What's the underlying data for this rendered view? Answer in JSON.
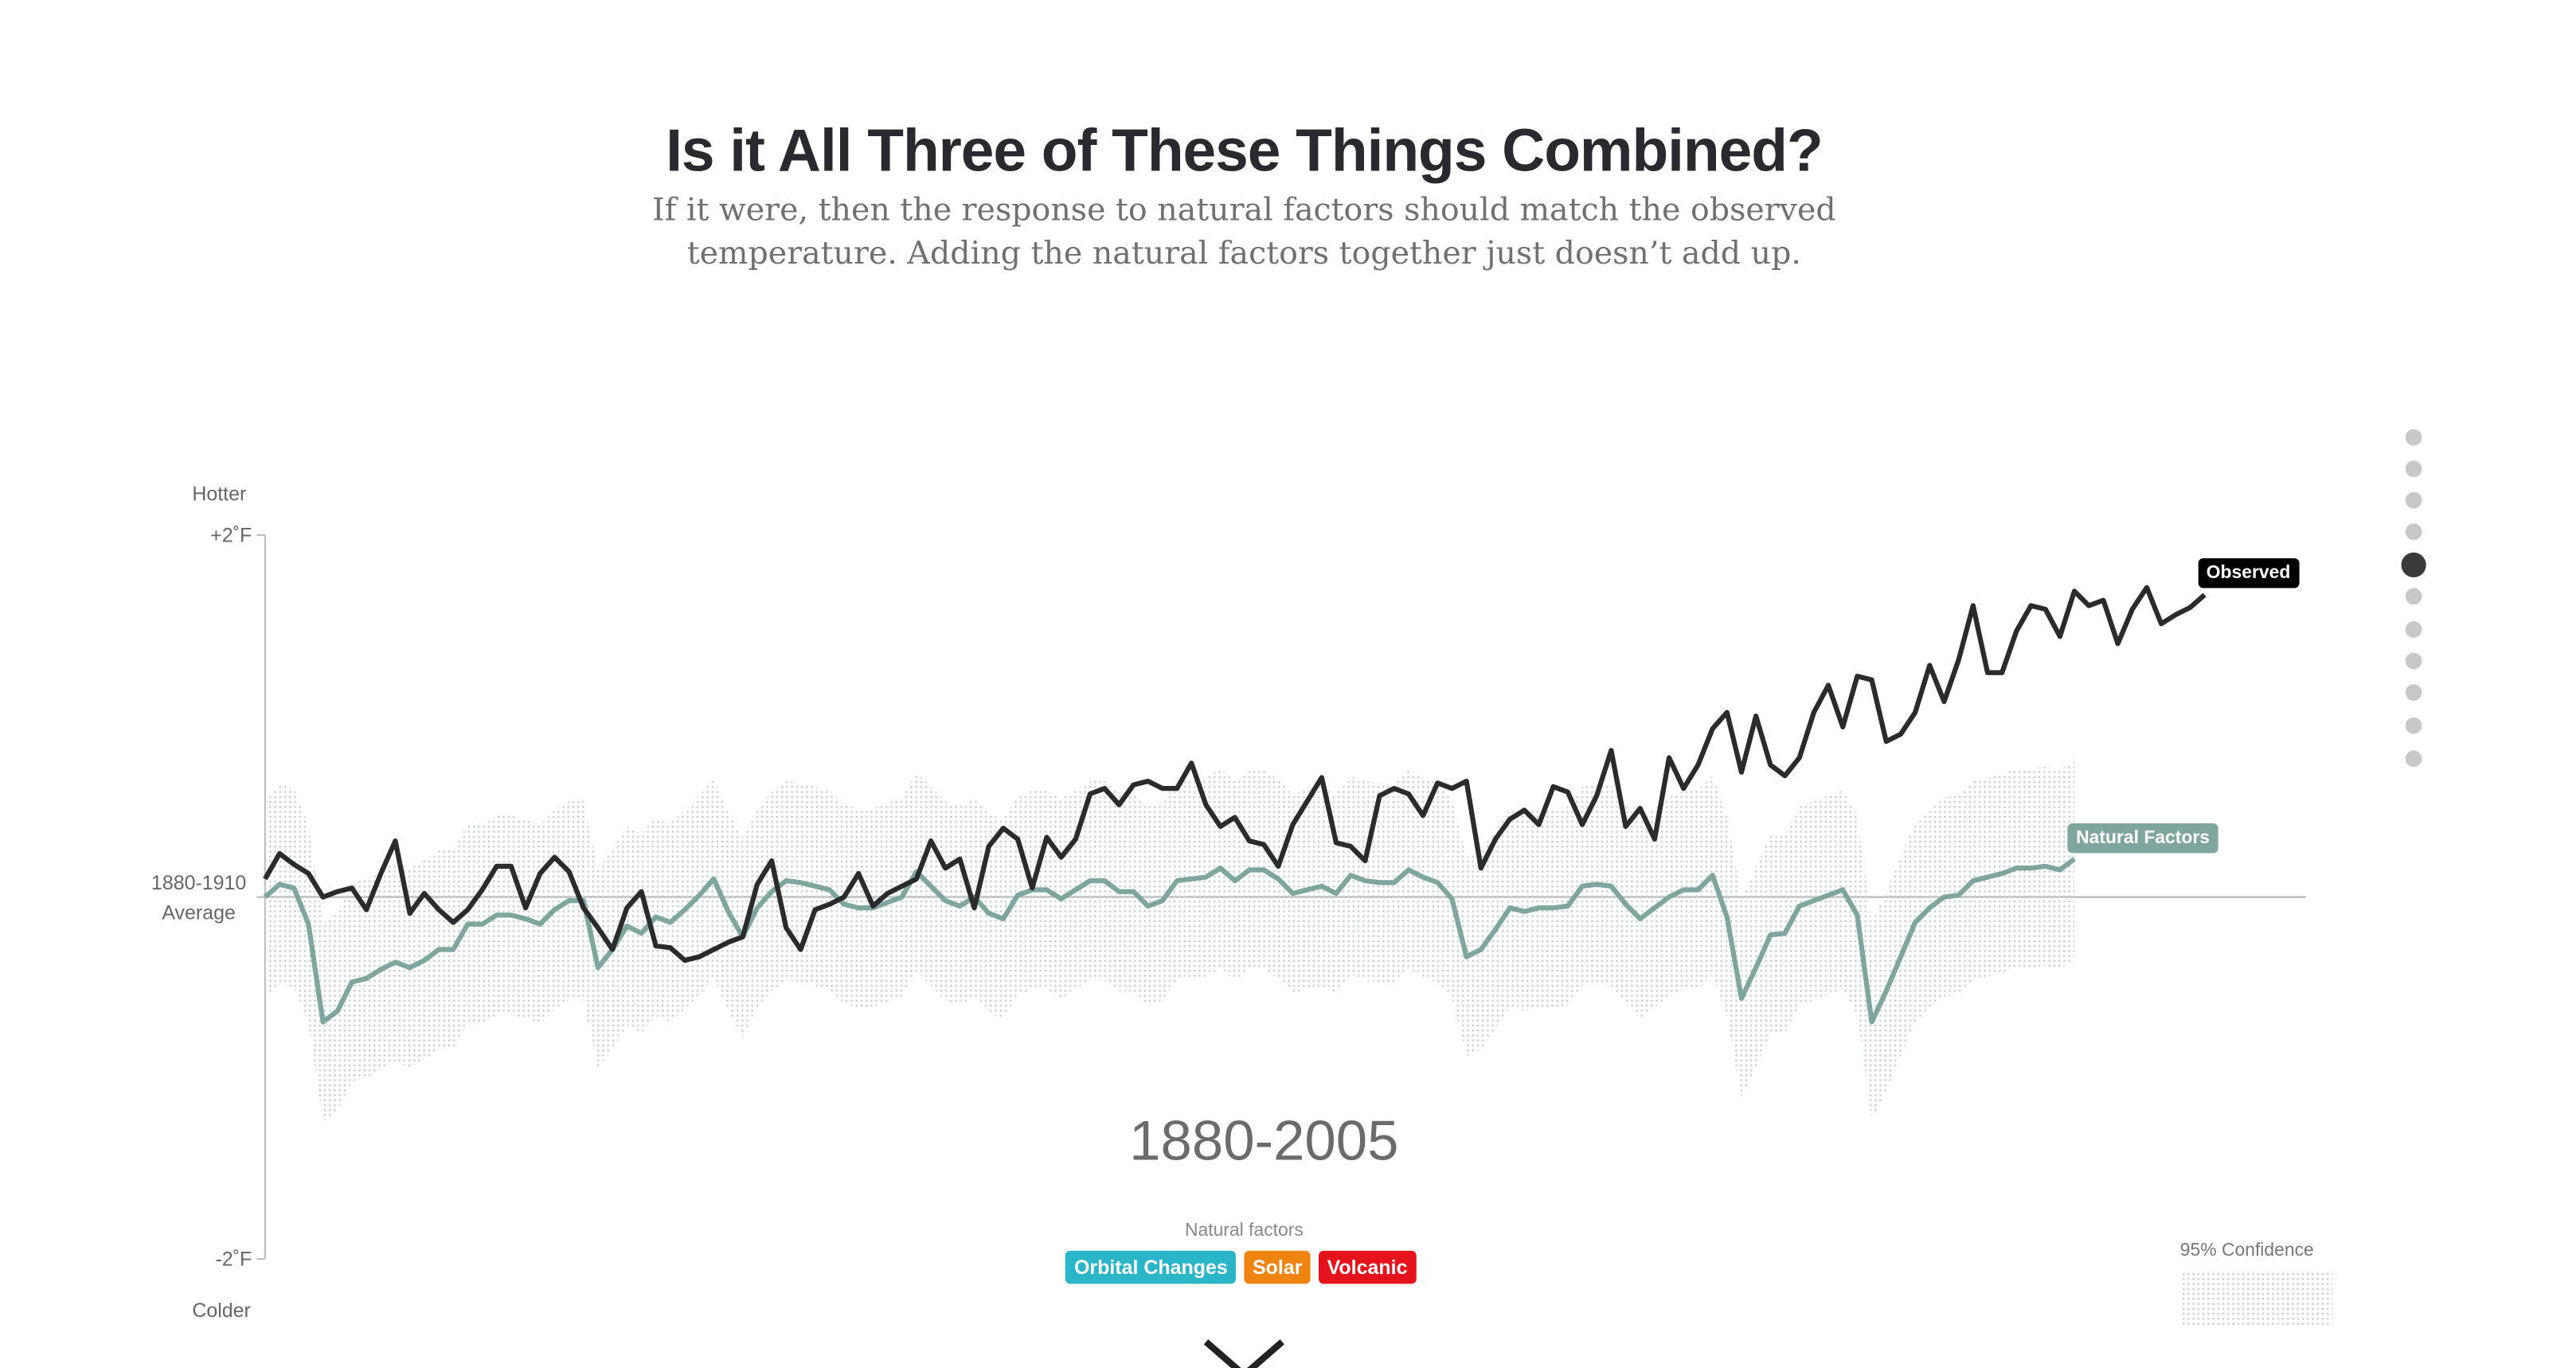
{
  "chart_data": {
    "type": "line",
    "title": "Is it All Three of These Things Combined?",
    "subtitle": "If it were, then the response to natural factors should match the observed temperature. Adding the natural factors together just doesn’t add up.",
    "y_top_label": "Hotter",
    "y_bottom_label": "Colder",
    "period_label": "1880-2005",
    "legend_title": "Natural factors",
    "factors": [
      {
        "name": "Orbital Changes",
        "color": "#2bb5c8"
      },
      {
        "name": "Solar",
        "color": "#f08410"
      },
      {
        "name": "Volcanic",
        "color": "#e5131c"
      }
    ],
    "confidence": {
      "name": "95% Confidence",
      "margin": 0.55,
      "color": "#c9cfcd"
    },
    "xlim": [
      1880,
      2021
    ],
    "ylim": [
      -2,
      2
    ],
    "yticks": [
      {
        "value": 2,
        "label": "+2˚F"
      },
      {
        "value": 0,
        "label": "1880-1910 Average"
      },
      {
        "value": -2,
        "label": "-2˚F"
      }
    ],
    "x": [
      1880,
      1881,
      1882,
      1883,
      1884,
      1885,
      1886,
      1887,
      1888,
      1889,
      1890,
      1891,
      1892,
      1893,
      1894,
      1895,
      1896,
      1897,
      1898,
      1899,
      1900,
      1901,
      1902,
      1903,
      1904,
      1905,
      1906,
      1907,
      1908,
      1909,
      1910,
      1911,
      1912,
      1913,
      1914,
      1915,
      1916,
      1917,
      1918,
      1919,
      1920,
      1921,
      1922,
      1923,
      1924,
      1925,
      1926,
      1927,
      1928,
      1929,
      1930,
      1931,
      1932,
      1933,
      1934,
      1935,
      1936,
      1937,
      1938,
      1939,
      1940,
      1941,
      1942,
      1943,
      1944,
      1945,
      1946,
      1947,
      1948,
      1949,
      1950,
      1951,
      1952,
      1953,
      1954,
      1955,
      1956,
      1957,
      1958,
      1959,
      1960,
      1961,
      1962,
      1963,
      1964,
      1965,
      1966,
      1967,
      1968,
      1969,
      1970,
      1971,
      1972,
      1973,
      1974,
      1975,
      1976,
      1977,
      1978,
      1979,
      1980,
      1981,
      1982,
      1983,
      1984,
      1985,
      1986,
      1987,
      1988,
      1989,
      1990,
      1991,
      1992,
      1993,
      1994,
      1995,
      1996,
      1997,
      1998,
      1999,
      2000,
      2001,
      2002,
      2003,
      2004,
      2005,
      2006,
      2007,
      2008,
      2009,
      2010,
      2011,
      2012,
      2013,
      2014
    ],
    "series": [
      {
        "name": "Observed",
        "color": "#2b2b2d",
        "values": [
          0.1,
          0.24,
          0.18,
          0.13,
          0.0,
          0.03,
          0.05,
          -0.07,
          0.13,
          0.31,
          -0.09,
          0.02,
          -0.07,
          -0.14,
          -0.07,
          0.04,
          0.17,
          0.17,
          -0.06,
          0.13,
          0.22,
          0.14,
          -0.06,
          -0.17,
          -0.29,
          -0.06,
          0.03,
          -0.27,
          -0.28,
          -0.35,
          -0.33,
          -0.29,
          -0.25,
          -0.22,
          0.07,
          0.2,
          -0.17,
          -0.29,
          -0.07,
          -0.04,
          0.0,
          0.13,
          -0.05,
          0.02,
          0.06,
          0.1,
          0.31,
          0.16,
          0.21,
          -0.06,
          0.28,
          0.38,
          0.32,
          0.05,
          0.33,
          0.22,
          0.32,
          0.57,
          0.6,
          0.51,
          0.62,
          0.64,
          0.6,
          0.6,
          0.74,
          0.51,
          0.39,
          0.44,
          0.31,
          0.29,
          0.17,
          0.4,
          0.53,
          0.66,
          0.3,
          0.28,
          0.2,
          0.56,
          0.6,
          0.57,
          0.45,
          0.63,
          0.6,
          0.64,
          0.16,
          0.32,
          0.43,
          0.48,
          0.4,
          0.61,
          0.58,
          0.4,
          0.56,
          0.81,
          0.39,
          0.49,
          0.32,
          0.77,
          0.6,
          0.73,
          0.93,
          1.02,
          0.69,
          1.0,
          0.73,
          0.67,
          0.77,
          1.02,
          1.17,
          0.94,
          1.22,
          1.2,
          0.86,
          0.9,
          1.02,
          1.28,
          1.08,
          1.31,
          1.61,
          1.24,
          1.24,
          1.47,
          1.61,
          1.59,
          1.44,
          1.69,
          1.61,
          1.64,
          1.4,
          1.59,
          1.71,
          1.51,
          1.56,
          1.6,
          1.67
        ]
      },
      {
        "name": "Natural Factors",
        "color": "#7ea69c",
        "values": [
          0,
          0.07,
          0.05,
          -0.15,
          -0.69,
          -0.63,
          -0.47,
          -0.45,
          -0.4,
          -0.36,
          -0.39,
          -0.35,
          -0.29,
          -0.29,
          -0.15,
          -0.15,
          -0.1,
          -0.1,
          -0.12,
          -0.15,
          -0.07,
          -0.02,
          -0.02,
          -0.39,
          -0.29,
          -0.16,
          -0.2,
          -0.11,
          -0.14,
          -0.07,
          0.01,
          0.1,
          -0.08,
          -0.22,
          -0.06,
          0.03,
          0.09,
          0.08,
          0.06,
          0.04,
          -0.04,
          -0.06,
          -0.06,
          -0.03,
          0,
          0.14,
          0.06,
          -0.02,
          -0.05,
          0,
          -0.09,
          -0.12,
          0.01,
          0.04,
          0.04,
          -0.01,
          0.04,
          0.09,
          0.09,
          0.03,
          0.03,
          -0.05,
          -0.02,
          0.09,
          0.1,
          0.11,
          0.16,
          0.09,
          0.15,
          0.15,
          0.1,
          0.02,
          0.04,
          0.06,
          0.02,
          0.12,
          0.09,
          0.08,
          0.08,
          0.15,
          0.11,
          0.08,
          -0.01,
          -0.33,
          -0.29,
          -0.18,
          -0.06,
          -0.08,
          -0.06,
          -0.06,
          -0.05,
          0.06,
          0.07,
          0.06,
          -0.04,
          -0.12,
          -0.06,
          0,
          0.04,
          0.04,
          0.12,
          -0.11,
          -0.56,
          -0.39,
          -0.21,
          -0.2,
          -0.05,
          -0.02,
          0.01,
          0.04,
          -0.1,
          -0.69,
          -0.52,
          -0.33,
          -0.14,
          -0.06,
          0,
          0.01,
          0.09,
          0.11,
          0.13,
          0.16,
          0.16,
          0.17,
          0.15,
          0.21,
          null,
          null,
          null,
          null,
          null,
          null,
          null,
          null,
          null
        ]
      }
    ]
  }
}
